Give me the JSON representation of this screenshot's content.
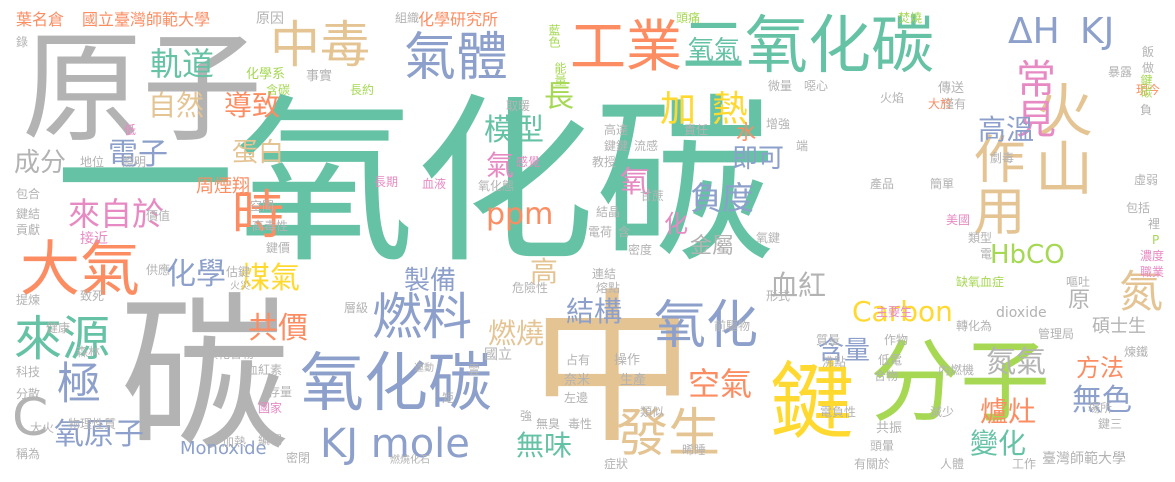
{
  "palette": {
    "teal": "#66c2a5",
    "gray": "#b3b3b3",
    "orange": "#fc8d62",
    "blue": "#8da0cb",
    "pink": "#e78ac3",
    "green": "#a6d854",
    "yellow": "#ffd92f",
    "tan": "#e5c494"
  },
  "words": [
    {
      "text": "一氧化碳",
      "color": "#66c2a5"
    },
    {
      "text": "原子",
      "color": "#b3b3b3"
    },
    {
      "text": "碳",
      "color": "#b3b3b3"
    },
    {
      "text": "中",
      "color": "#e5c494"
    },
    {
      "text": "分子",
      "color": "#a6d854"
    },
    {
      "text": "鍵",
      "color": "#ffd92f"
    },
    {
      "text": "二氧化碳",
      "color": "#66c2a5"
    },
    {
      "text": "氧化碳",
      "color": "#8da0cb"
    },
    {
      "text": "大氣",
      "color": "#fc8d62"
    },
    {
      "text": "工業",
      "color": "#fc8d62"
    },
    {
      "text": "中毒",
      "color": "#e5c494"
    },
    {
      "text": "氣體",
      "color": "#8da0cb"
    },
    {
      "text": "燃料",
      "color": "#8da0cb"
    },
    {
      "text": "來源",
      "color": "#66c2a5"
    },
    {
      "text": "氧化",
      "color": "#8da0cb"
    },
    {
      "text": "發生",
      "color": "#e5c494"
    },
    {
      "text": "火山",
      "color": "#e5c494"
    },
    {
      "text": "作用",
      "color": "#e5c494"
    },
    {
      "text": "常見",
      "color": "#e78ac3"
    },
    {
      "text": "時",
      "color": "#fc8d62"
    },
    {
      "text": "極",
      "color": "#8da0cb"
    },
    {
      "text": "KJ mole",
      "color": "#8da0cb"
    },
    {
      "text": "ΔH",
      "color": "#8da0cb"
    },
    {
      "text": "KJ",
      "color": "#8da0cb"
    },
    {
      "text": "氮",
      "color": "#e5c494"
    },
    {
      "text": "加",
      "color": "#ffd92f"
    },
    {
      "text": "熱",
      "color": "#ffd92f"
    },
    {
      "text": "氧氣",
      "color": "#66c2a5"
    },
    {
      "text": "軌道",
      "color": "#66c2a5"
    },
    {
      "text": "自然",
      "color": "#e5c494"
    },
    {
      "text": "導致",
      "color": "#fc8d62"
    },
    {
      "text": "電子",
      "color": "#8da0cb"
    },
    {
      "text": "蛋白",
      "color": "#e5c494"
    },
    {
      "text": "模型",
      "color": "#66c2a5"
    },
    {
      "text": "長",
      "color": "#a6d854"
    },
    {
      "text": "高溫",
      "color": "#8da0cb"
    },
    {
      "text": "來自於",
      "color": "#e78ac3"
    },
    {
      "text": "化學",
      "color": "#8da0cb"
    },
    {
      "text": "煤氣",
      "color": "#ffd92f"
    },
    {
      "text": "共價",
      "color": "#fc8d62"
    },
    {
      "text": "製備",
      "color": "#8da0cb"
    },
    {
      "text": "燃燒",
      "color": "#e5c494"
    },
    {
      "text": "結構",
      "color": "#8da0cb"
    },
    {
      "text": "負度",
      "color": "#8da0cb"
    },
    {
      "text": "即可",
      "color": "#8da0cb"
    },
    {
      "text": "血紅",
      "color": "#b3b3b3"
    },
    {
      "text": "HbCO",
      "color": "#a6d854"
    },
    {
      "text": "Carbon",
      "color": "#ffd92f"
    },
    {
      "text": "含量",
      "color": "#8da0cb"
    },
    {
      "text": "氮氣",
      "color": "#b3b3b3"
    },
    {
      "text": "方法",
      "color": "#fc8d62"
    },
    {
      "text": "無色",
      "color": "#8da0cb"
    },
    {
      "text": "爐灶",
      "color": "#fc8d62"
    },
    {
      "text": "變化",
      "color": "#66c2a5"
    },
    {
      "text": "空氣",
      "color": "#fc8d62"
    },
    {
      "text": "無味",
      "color": "#66c2a5"
    },
    {
      "text": "氧原子",
      "color": "#8da0cb"
    },
    {
      "text": "ppm",
      "color": "#fc8d62"
    },
    {
      "text": "高",
      "color": "#e5c494"
    },
    {
      "text": "金屬",
      "color": "#b3b3b3"
    },
    {
      "text": "氣",
      "color": "#e78ac3"
    },
    {
      "text": "氧",
      "color": "#e78ac3"
    },
    {
      "text": "化",
      "color": "#e78ac3"
    },
    {
      "text": "成分",
      "color": "#b3b3b3"
    },
    {
      "text": "C",
      "color": "#b3b3b3"
    },
    {
      "text": "Monoxide",
      "color": "#8da0cb"
    },
    {
      "text": "水",
      "color": "#fc8d62"
    },
    {
      "text": "周煙翔",
      "color": "#fc8d62"
    },
    {
      "text": "國立臺灣師範大學",
      "color": "#fc8d62"
    },
    {
      "text": "葉名倉",
      "color": "#fc8d62"
    },
    {
      "text": "化學研究所",
      "color": "#fc8d62"
    },
    {
      "text": "原因",
      "color": "#b3b3b3"
    },
    {
      "text": "組織",
      "color": "#b3b3b3"
    },
    {
      "text": "藍色",
      "color": "#a6d854"
    },
    {
      "text": "能量",
      "color": "#a6d854"
    },
    {
      "text": "頭痛",
      "color": "#a6d854"
    },
    {
      "text": "焚燒",
      "color": "#a6d854"
    },
    {
      "text": "化學系",
      "color": "#a6d854"
    },
    {
      "text": "事實",
      "color": "#b3b3b3"
    },
    {
      "text": "含碳",
      "color": "#a6d854"
    },
    {
      "text": "長約",
      "color": "#a6d854"
    },
    {
      "text": "取暖",
      "color": "#b3b3b3"
    },
    {
      "text": "微量",
      "color": "#b3b3b3"
    },
    {
      "text": "噁心",
      "color": "#b3b3b3"
    },
    {
      "text": "飯",
      "color": "#b3b3b3"
    },
    {
      "text": "做",
      "color": "#b3b3b3"
    },
    {
      "text": "暴露",
      "color": "#b3b3b3"
    },
    {
      "text": "傳送",
      "color": "#b3b3b3"
    },
    {
      "text": "僅有",
      "color": "#b3b3b3"
    },
    {
      "text": "大於",
      "color": "#fc8d62"
    },
    {
      "text": "火焰",
      "color": "#b3b3b3"
    },
    {
      "text": "現今",
      "color": "#fc8d62"
    },
    {
      "text": "鍵碳",
      "color": "#a6d854"
    },
    {
      "text": "負",
      "color": "#b3b3b3"
    },
    {
      "text": "高達",
      "color": "#b3b3b3"
    },
    {
      "text": "責任",
      "color": "#b3b3b3"
    },
    {
      "text": "鍵鍵",
      "color": "#b3b3b3"
    },
    {
      "text": "增強",
      "color": "#b3b3b3"
    },
    {
      "text": "端",
      "color": "#b3b3b3"
    },
    {
      "text": "劇毒",
      "color": "#b3b3b3"
    },
    {
      "text": "教授",
      "color": "#b3b3b3"
    },
    {
      "text": "流感",
      "color": "#b3b3b3"
    },
    {
      "text": "照明",
      "color": "#b3b3b3"
    },
    {
      "text": "地位",
      "color": "#b3b3b3"
    },
    {
      "text": "感覺",
      "color": "#e78ac3"
    },
    {
      "text": "長期",
      "color": "#e78ac3"
    },
    {
      "text": "血液",
      "color": "#e78ac3"
    },
    {
      "text": "氧化態",
      "color": "#b3b3b3"
    },
    {
      "text": "甘蔗",
      "color": "#b3b3b3"
    },
    {
      "text": "產品",
      "color": "#b3b3b3"
    },
    {
      "text": "簡單",
      "color": "#b3b3b3"
    },
    {
      "text": "虛弱",
      "color": "#b3b3b3"
    },
    {
      "text": "包括",
      "color": "#b3b3b3"
    },
    {
      "text": "裡",
      "color": "#b3b3b3"
    },
    {
      "text": "P",
      "color": "#a6d854"
    },
    {
      "text": "濃度",
      "color": "#e78ac3"
    },
    {
      "text": "職業",
      "color": "#e78ac3"
    },
    {
      "text": "美國",
      "color": "#e78ac3"
    },
    {
      "text": "類型",
      "color": "#b3b3b3"
    },
    {
      "text": "電",
      "color": "#b3b3b3"
    },
    {
      "text": "鍵結",
      "color": "#b3b3b3"
    },
    {
      "text": "包合",
      "color": "#b3b3b3"
    },
    {
      "text": "貢獻",
      "color": "#b3b3b3"
    },
    {
      "text": "價值",
      "color": "#b3b3b3"
    },
    {
      "text": "接近",
      "color": "#e78ac3"
    },
    {
      "text": "供應",
      "color": "#b3b3b3"
    },
    {
      "text": "高毒性",
      "color": "#b3b3b3"
    },
    {
      "text": "空間",
      "color": "#b3b3b3"
    },
    {
      "text": "鍵價",
      "color": "#b3b3b3"
    },
    {
      "text": "電荷",
      "color": "#b3b3b3"
    },
    {
      "text": "結晶",
      "color": "#b3b3b3"
    },
    {
      "text": "含",
      "color": "#b3b3b3"
    },
    {
      "text": "密度",
      "color": "#b3b3b3"
    },
    {
      "text": "氧鍵",
      "color": "#b3b3b3"
    },
    {
      "text": "提煉",
      "color": "#b3b3b3"
    },
    {
      "text": "致死",
      "color": "#b3b3b3"
    },
    {
      "text": "估鍵",
      "color": "#b3b3b3"
    },
    {
      "text": "火災",
      "color": "#b3b3b3"
    },
    {
      "text": "危險性",
      "color": "#b3b3b3"
    },
    {
      "text": "連結",
      "color": "#b3b3b3"
    },
    {
      "text": "熔點",
      "color": "#b3b3b3"
    },
    {
      "text": "形式",
      "color": "#b3b3b3"
    },
    {
      "text": "缺氧血症",
      "color": "#a6d854"
    },
    {
      "text": "嘔吐",
      "color": "#b3b3b3"
    },
    {
      "text": "原",
      "color": "#b3b3b3"
    },
    {
      "text": "碩士生",
      "color": "#b3b3b3"
    },
    {
      "text": "健康",
      "color": "#b3b3b3"
    },
    {
      "text": "層級",
      "color": "#b3b3b3"
    },
    {
      "text": "前驅物",
      "color": "#b3b3b3"
    },
    {
      "text": "主要生",
      "color": "#e78ac3"
    },
    {
      "text": "轉化為",
      "color": "#b3b3b3"
    },
    {
      "text": "dioxide",
      "color": "#b3b3b3"
    },
    {
      "text": "質量",
      "color": "#b3b3b3"
    },
    {
      "text": "作物",
      "color": "#b3b3b3"
    },
    {
      "text": "管理局",
      "color": "#b3b3b3"
    },
    {
      "text": "煉鐵",
      "color": "#b3b3b3"
    },
    {
      "text": "森林",
      "color": "#b3b3b3"
    },
    {
      "text": "碳化合物",
      "color": "#b3b3b3"
    },
    {
      "text": "國立",
      "color": "#b3b3b3"
    },
    {
      "text": "占有",
      "color": "#b3b3b3"
    },
    {
      "text": "操作",
      "color": "#b3b3b3"
    },
    {
      "text": "沸點",
      "color": "#b3b3b3"
    },
    {
      "text": "低電",
      "color": "#b3b3b3"
    },
    {
      "text": "內燃機",
      "color": "#b3b3b3"
    },
    {
      "text": "科技",
      "color": "#b3b3b3"
    },
    {
      "text": "血紅素",
      "color": "#b3b3b3"
    },
    {
      "text": "雲",
      "color": "#b3b3b3"
    },
    {
      "text": "奈米",
      "color": "#b3b3b3"
    },
    {
      "text": "生產",
      "color": "#b3b3b3"
    },
    {
      "text": "合物",
      "color": "#b3b3b3"
    },
    {
      "text": "分散",
      "color": "#b3b3b3"
    },
    {
      "text": "存量",
      "color": "#b3b3b3"
    },
    {
      "text": "運動",
      "color": "#b3b3b3"
    },
    {
      "text": "左邊",
      "color": "#b3b3b3"
    },
    {
      "text": "類似",
      "color": "#b3b3b3"
    },
    {
      "text": "電負性",
      "color": "#b3b3b3"
    },
    {
      "text": "減少",
      "color": "#b3b3b3"
    },
    {
      "text": "場所",
      "color": "#b3b3b3"
    },
    {
      "text": "鍵三",
      "color": "#b3b3b3"
    },
    {
      "text": "大火",
      "color": "#b3b3b3"
    },
    {
      "text": "物理性質",
      "color": "#b3b3b3"
    },
    {
      "text": "國家",
      "color": "#e78ac3"
    },
    {
      "text": "矩",
      "color": "#b3b3b3"
    },
    {
      "text": "強",
      "color": "#b3b3b3"
    },
    {
      "text": "無臭",
      "color": "#b3b3b3"
    },
    {
      "text": "毒性",
      "color": "#b3b3b3"
    },
    {
      "text": "共振",
      "color": "#b3b3b3"
    },
    {
      "text": "頭暈",
      "color": "#b3b3b3"
    },
    {
      "text": "加熱",
      "color": "#b3b3b3"
    },
    {
      "text": "編輯",
      "color": "#b3b3b3"
    },
    {
      "text": "密閉",
      "color": "#b3b3b3"
    },
    {
      "text": "燃燒化石",
      "color": "#b3b3b3"
    },
    {
      "text": "晞睡",
      "color": "#b3b3b3"
    },
    {
      "text": "稱為",
      "color": "#b3b3b3"
    },
    {
      "text": "症狀",
      "color": "#b3b3b3"
    },
    {
      "text": "有關於",
      "color": "#b3b3b3"
    },
    {
      "text": "人體",
      "color": "#b3b3b3"
    },
    {
      "text": "工作",
      "color": "#b3b3b3"
    },
    {
      "text": "臺灣師範大學",
      "color": "#b3b3b3"
    },
    {
      "text": "低",
      "color": "#e78ac3"
    },
    {
      "text": "錄",
      "color": "#b3b3b3"
    }
  ]
}
